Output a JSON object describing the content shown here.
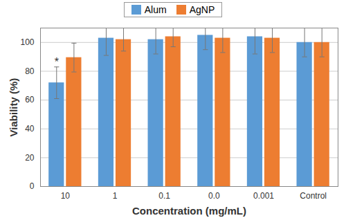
{
  "chart_data": {
    "type": "bar",
    "categories": [
      "10",
      "1",
      "0.1",
      "0.0",
      "0.001",
      "Control"
    ],
    "series": [
      {
        "name": "Alum",
        "color": "#5b9bd5",
        "values": [
          72,
          103,
          102,
          105,
          104,
          100
        ],
        "errors": [
          11,
          12,
          10,
          10,
          12,
          10
        ]
      },
      {
        "name": "AgNP",
        "color": "#ed7d31",
        "values": [
          89.5,
          102,
          104,
          103,
          103,
          100
        ],
        "errors": [
          10,
          8,
          7,
          10,
          10,
          10
        ]
      }
    ],
    "x_label": "Concentration (mg/mL)",
    "y_label": "Viability (%)",
    "ylim": [
      0,
      110
    ],
    "yticks": [
      0,
      20,
      40,
      60,
      80,
      100
    ],
    "grid": true,
    "legend": "top",
    "annotations": [
      {
        "text": "*",
        "category": "10",
        "series": "Alum"
      }
    ]
  }
}
